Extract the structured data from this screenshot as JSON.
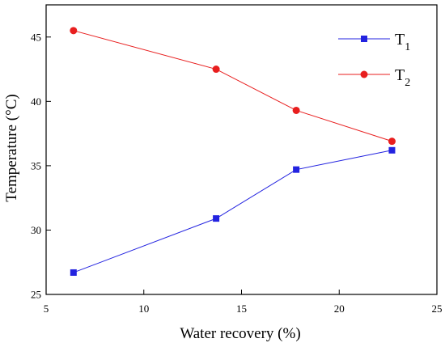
{
  "chart_data": {
    "type": "line",
    "xlabel": "Water recovery (%)",
    "ylabel": "Temperature (°C)",
    "xlim": [
      5,
      25
    ],
    "ylim": [
      25,
      47.5
    ],
    "x_ticks": [
      5,
      10,
      15,
      20,
      25
    ],
    "y_ticks": [
      25,
      30,
      35,
      40,
      45
    ],
    "grid": false,
    "legend_position": "top-right",
    "series": [
      {
        "name": "T",
        "name_subscript": "1",
        "marker": "square",
        "color": "#2323e0",
        "x": [
          6.4,
          13.7,
          17.8,
          22.7
        ],
        "y": [
          26.7,
          30.9,
          34.7,
          36.2
        ]
      },
      {
        "name": "T",
        "name_subscript": "2",
        "marker": "circle",
        "color": "#e81e1e",
        "x": [
          6.4,
          13.7,
          17.8,
          22.7
        ],
        "y": [
          45.5,
          42.5,
          39.3,
          36.9
        ]
      }
    ]
  }
}
